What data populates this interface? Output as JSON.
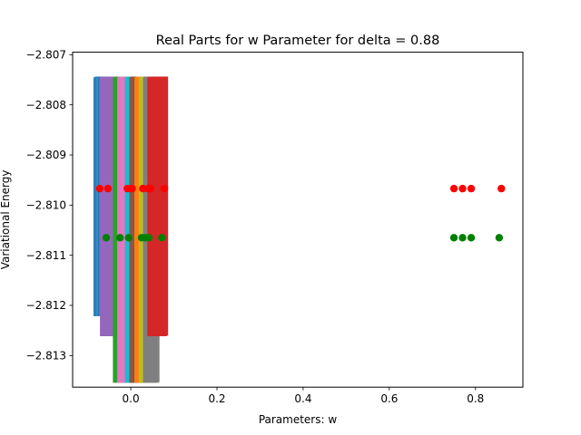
{
  "chart_data": {
    "type": "scatter",
    "title": "Real Parts for w Parameter for delta = 0.88",
    "xlabel": "Parameters: w",
    "ylabel": "Variational Energy",
    "xlim": [
      -0.135,
      0.91
    ],
    "ylim": [
      -2.81363,
      -2.80695
    ],
    "xticks": [
      0.0,
      0.2,
      0.4,
      0.6,
      0.8
    ],
    "xtick_labels": [
      "0.0",
      "0.2",
      "0.4",
      "0.6",
      "0.8"
    ],
    "yticks": [
      -2.813,
      -2.812,
      -2.811,
      -2.81,
      -2.809,
      -2.808,
      -2.807
    ],
    "ytick_labels": [
      "−2.813",
      "−2.812",
      "−2.811",
      "−2.810",
      "−2.809",
      "−2.808",
      "−2.807"
    ],
    "grid": false,
    "series": [
      {
        "color": "#ff0000",
        "marker": "circle",
        "points": [
          {
            "x": -0.072,
            "y": -2.80967
          },
          {
            "x": -0.053,
            "y": -2.80967
          },
          {
            "x": -0.008,
            "y": -2.80967
          },
          {
            "x": 0.003,
            "y": -2.80967
          },
          {
            "x": 0.028,
            "y": -2.80967
          },
          {
            "x": 0.04,
            "y": -2.80967
          },
          {
            "x": 0.046,
            "y": -2.80967
          },
          {
            "x": 0.078,
            "y": -2.80967
          },
          {
            "x": 0.75,
            "y": -2.80967
          },
          {
            "x": 0.77,
            "y": -2.80967
          },
          {
            "x": 0.79,
            "y": -2.80967
          },
          {
            "x": 0.86,
            "y": -2.80967
          }
        ]
      },
      {
        "color": "#008000",
        "marker": "circle",
        "points": [
          {
            "x": -0.057,
            "y": -2.81065
          },
          {
            "x": -0.025,
            "y": -2.81065
          },
          {
            "x": -0.005,
            "y": -2.81065
          },
          {
            "x": 0.025,
            "y": -2.81065
          },
          {
            "x": 0.034,
            "y": -2.81065
          },
          {
            "x": 0.042,
            "y": -2.81065
          },
          {
            "x": 0.072,
            "y": -2.81065
          },
          {
            "x": 0.75,
            "y": -2.81065
          },
          {
            "x": 0.77,
            "y": -2.81065
          },
          {
            "x": 0.79,
            "y": -2.81065
          },
          {
            "x": 0.855,
            "y": -2.81065
          }
        ]
      }
    ],
    "oscillating_traces": [
      {
        "color": "#1f77b4",
        "x_start": -0.085,
        "x_end": -0.03,
        "y_top": -2.80745,
        "y_bottom": -2.8122
      },
      {
        "color": "#9467bd",
        "x_start": -0.07,
        "x_end": -0.02,
        "y_top": -2.80745,
        "y_bottom": -2.8126
      },
      {
        "color": "#2ca02c",
        "x_start": -0.04,
        "x_end": 0.005,
        "y_top": -2.80745,
        "y_bottom": -2.81353
      },
      {
        "color": "#e377c2",
        "x_start": -0.03,
        "x_end": 0.02,
        "y_top": -2.80745,
        "y_bottom": -2.81353
      },
      {
        "color": "#17becf",
        "x_start": -0.012,
        "x_end": 0.03,
        "y_top": -2.80745,
        "y_bottom": -2.81353
      },
      {
        "color": "#8c564b",
        "x_start": -0.002,
        "x_end": 0.04,
        "y_top": -2.80745,
        "y_bottom": -2.81353
      },
      {
        "color": "#ff7f0e",
        "x_start": 0.01,
        "x_end": 0.06,
        "y_top": -2.80745,
        "y_bottom": -2.81353
      },
      {
        "color": "#bcbd22",
        "x_start": 0.02,
        "x_end": 0.055,
        "y_top": -2.80745,
        "y_bottom": -2.81353
      },
      {
        "color": "#7f7f7f",
        "x_start": 0.03,
        "x_end": 0.065,
        "y_top": -2.80745,
        "y_bottom": -2.81353
      },
      {
        "color": "#d62728",
        "x_start": 0.04,
        "x_end": 0.085,
        "y_top": -2.80745,
        "y_bottom": -2.8126
      }
    ]
  }
}
